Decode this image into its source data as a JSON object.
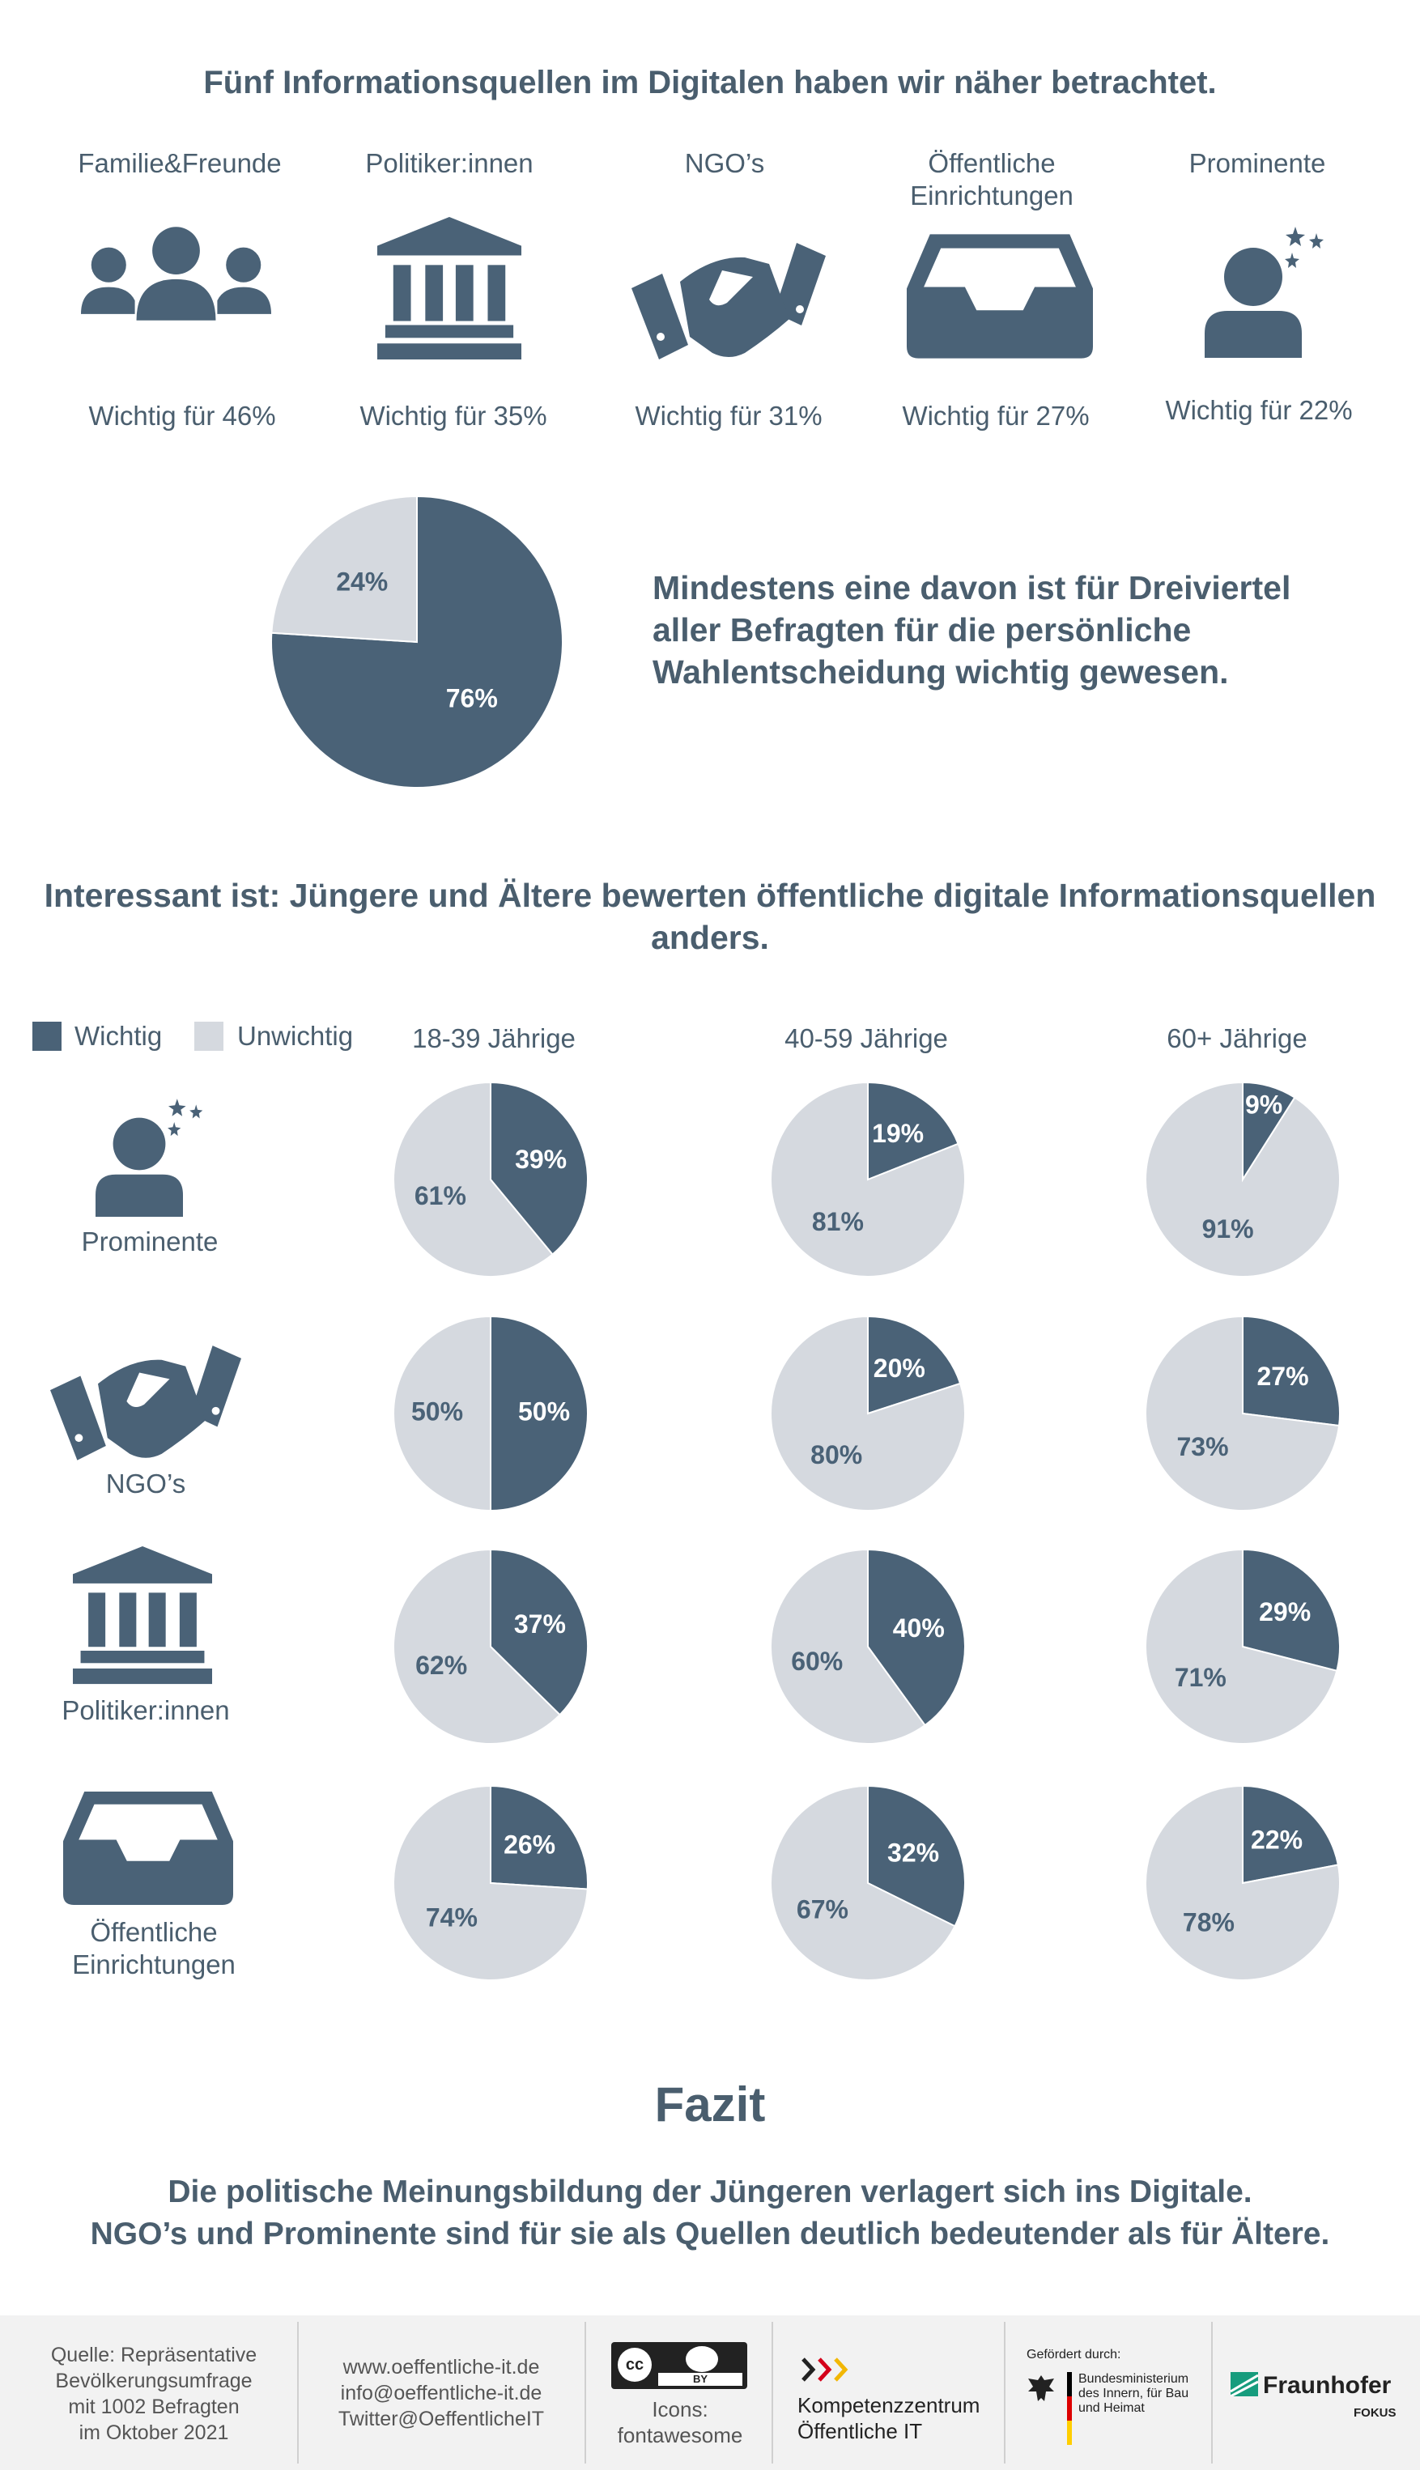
{
  "header": {
    "title": "Fünf Informationsquellen im Digitalen haben wir näher betrachtet."
  },
  "sources": [
    {
      "label": "Familie&Freunde",
      "value": "Wichtig für 46%",
      "icon": "family-icon"
    },
    {
      "label": "Politiker:innen",
      "value": "Wichtig für 35%",
      "icon": "government-building-icon"
    },
    {
      "label": "NGO’s",
      "value": "Wichtig für 31%",
      "icon": "handshake-icon"
    },
    {
      "label": "Öffentliche Einrichtungen",
      "value": "Wichtig für 27%",
      "icon": "inbox-tray-icon"
    },
    {
      "label": "Prominente",
      "value": "Wichtig für 22%",
      "icon": "star-person-icon"
    }
  ],
  "summary": {
    "text": "Mindestens eine davon ist für Dreiviertel aller Befragten für die persönliche Wahlentscheidung wichtig gewesen."
  },
  "section2": {
    "title": "Interessant ist: Jüngere und Ältere bewerten öffentliche digitale Informationsquellen anders."
  },
  "legend": {
    "important": "Wichtig",
    "unimportant": "Unwichtig"
  },
  "colors": {
    "important": "#4a6277",
    "unimportant": "#d5d9df",
    "text": "#4a5e6e"
  },
  "chart_data": [
    {
      "type": "pie",
      "title": "",
      "slices": [
        {
          "label": "76%",
          "value": 76,
          "category": "Wichtig"
        },
        {
          "label": "24%",
          "value": 24,
          "category": "Unwichtig"
        }
      ]
    },
    {
      "type": "pie",
      "title": "",
      "columns": [
        "18-39 Jährige",
        "40-59 Jährige",
        "60+ Jährige"
      ],
      "rows": [
        {
          "label": "Prominente",
          "icon": "star-person-icon",
          "important": [
            39,
            19,
            9
          ],
          "unimportant": [
            61,
            81,
            91
          ]
        },
        {
          "label": "NGO’s",
          "icon": "handshake-icon",
          "important": [
            50,
            20,
            27
          ],
          "unimportant": [
            50,
            80,
            73
          ]
        },
        {
          "label": "Politiker:innen",
          "icon": "government-building-icon",
          "important": [
            37,
            40,
            29
          ],
          "unimportant": [
            62,
            60,
            71
          ]
        },
        {
          "label": "Öffentliche Einrichtungen",
          "icon": "inbox-tray-icon",
          "important": [
            26,
            32,
            22
          ],
          "unimportant": [
            74,
            67,
            78
          ]
        }
      ]
    }
  ],
  "fazit": {
    "title": "Fazit",
    "line1": "Die politische Meinungsbildung der Jüngeren verlagert sich ins Digitale.",
    "line2": "NGO’s und Prominente sind für sie als Quellen deutlich bedeutender als für Ältere."
  },
  "footer": {
    "source": [
      "Quelle: Repräsentative",
      "Bevölkerungsumfrage",
      "mit 1002 Befragten",
      "im Oktober 2021"
    ],
    "contact": [
      "www.oeffentliche-it.de",
      "info@oeffentliche-it.de",
      "Twitter@OeffentlicheIT"
    ],
    "license_badge": [
      "cc",
      "BY"
    ],
    "icons_credit": [
      "Icons:",
      "fontawesome"
    ],
    "kompetenz": [
      "Kompetenzzentrum",
      "Öffentliche IT"
    ],
    "gefoerdert": "Gefördert durch:",
    "ministry": [
      "Bundesministerium",
      "des Innern, für Bau",
      "und Heimat"
    ],
    "fraunhofer": "Fraunhofer",
    "fokus": "FOKUS"
  }
}
